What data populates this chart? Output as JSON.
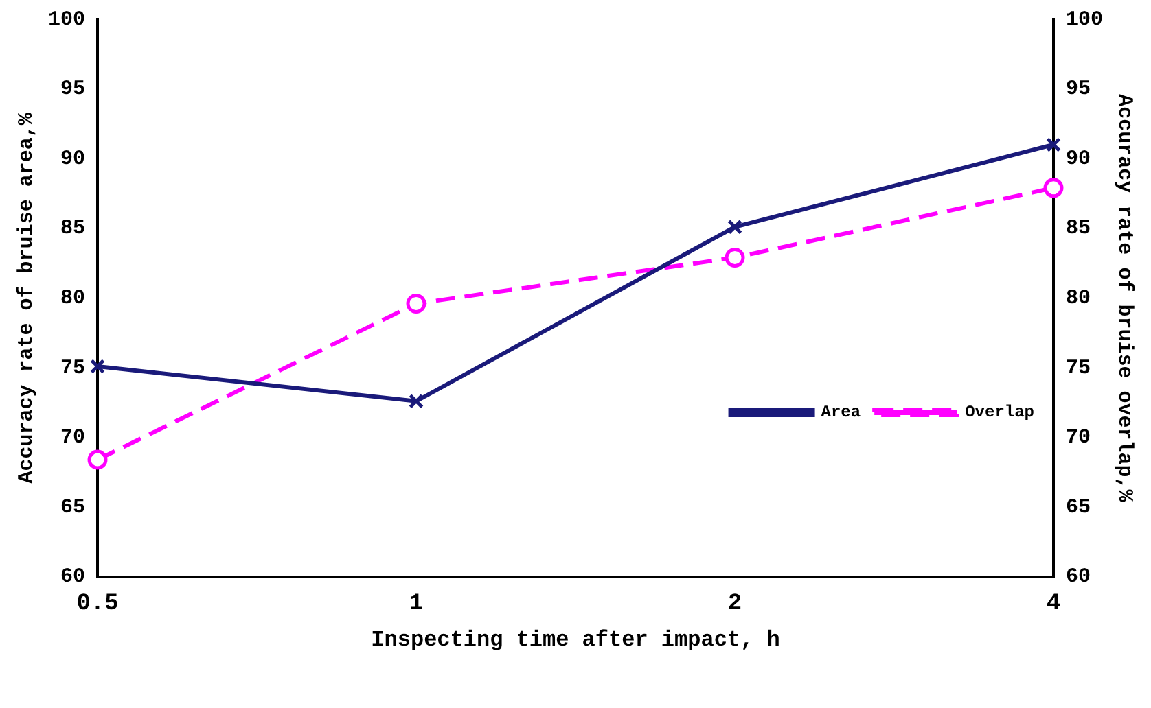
{
  "chart_data": {
    "type": "line",
    "xlabel": "Inspecting time after impact, h",
    "ylabel": "Accuracy rate of bruise area,%",
    "y2label": "Accuracy rate of bruise overlap,%",
    "categories": [
      "0.5",
      "1",
      "2",
      "4"
    ],
    "series": [
      {
        "name": "Area",
        "color": "#1a1a7a",
        "values": [
          75.1,
          72.6,
          85.1,
          91.0
        ],
        "marker": "cross",
        "line_style": "solid"
      },
      {
        "name": "Overlap",
        "color": "#ff00ff",
        "values": [
          68.4,
          79.6,
          82.9,
          87.9
        ],
        "marker": "circle",
        "line_style": "dashed",
        "axis": "y2"
      }
    ],
    "ylim": [
      60,
      100
    ],
    "yticks": [
      60,
      65,
      70,
      75,
      80,
      85,
      90,
      95,
      100
    ],
    "y2lim": [
      60,
      100
    ],
    "y2ticks": [
      60,
      65,
      70,
      75,
      80,
      85,
      90,
      95,
      100
    ],
    "grid": false,
    "legend": "right"
  }
}
